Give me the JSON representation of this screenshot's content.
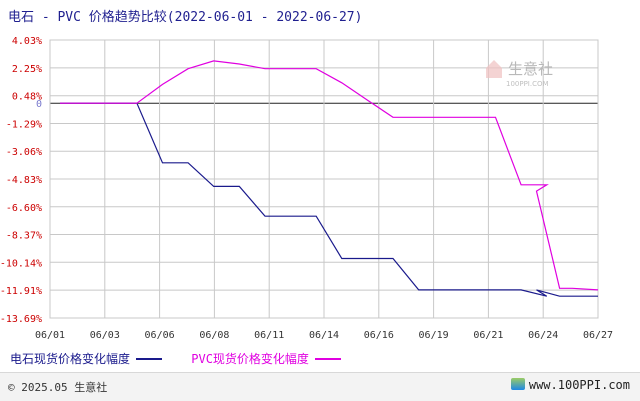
{
  "title": "电石 - PVC 价格趋势比较(2022-06-01 - 2022-06-27)",
  "colors": {
    "series1": "#1a1a8c",
    "series2": "#e000e0",
    "grid": "#c8c8c8",
    "axis": "#222222",
    "tick_text": "#cc0000",
    "x_text": "#333333"
  },
  "watermark": {
    "name": "生意社",
    "site": "100PPI.COM"
  },
  "footer": {
    "copyright": "© 2025.05 生意社",
    "url": "www.100PPI.com"
  },
  "chart_data": {
    "type": "line",
    "title": "电石 - PVC 价格趋势比较(2022-06-01 - 2022-06-27)",
    "y_tick_labels": [
      "4.03%",
      "2.25%",
      "0.48%",
      "0",
      "-1.29%",
      "-3.06%",
      "-4.83%",
      "-6.60%",
      "-8.37%",
      "-10.14%",
      "-11.91%",
      "-13.69%"
    ],
    "y_tick_values": [
      4.03,
      2.25,
      0.48,
      0,
      -1.29,
      -3.06,
      -4.83,
      -6.6,
      -8.37,
      -10.14,
      -11.91,
      -13.69
    ],
    "ylim": [
      -13.69,
      4.03
    ],
    "x_tick_labels": [
      "06/01",
      "06/03",
      "06/06",
      "06/08",
      "06/11",
      "06/14",
      "06/16",
      "06/19",
      "06/21",
      "06/24",
      "06/27"
    ],
    "grid": true,
    "legend_position": "bottom-left",
    "series": [
      {
        "name": "电石现货价格变化幅度",
        "x": [
          0,
          1,
          2,
          3,
          4,
          5,
          6,
          7,
          8,
          9,
          10,
          11,
          12,
          13,
          14,
          15,
          16,
          17,
          18,
          19
        ],
        "values": [
          0,
          0,
          0,
          0,
          -3.8,
          -3.8,
          -5.3,
          -5.3,
          -7.2,
          -7.2,
          -7.2,
          -9.9,
          -9.9,
          -9.9,
          -11.9,
          -11.9,
          -11.9,
          -11.9,
          -11.9,
          -12.3
        ]
      },
      {
        "name": "PVC现货价格变化幅度",
        "x": [
          0,
          1,
          2,
          3,
          4,
          5,
          6,
          7,
          8,
          9,
          10,
          11,
          12,
          13,
          14,
          15,
          16,
          17,
          18,
          19
        ],
        "values": [
          0,
          0,
          0,
          0,
          1.2,
          2.2,
          2.7,
          2.5,
          2.2,
          2.2,
          2.2,
          1.3,
          0.2,
          -0.9,
          -0.9,
          -0.9,
          -0.9,
          -0.9,
          -5.2,
          -5.2
        ]
      }
    ],
    "series_extra": [
      {
        "x": [
          18.6,
          19.5,
          20,
          21
        ],
        "s2": [
          -5.6,
          -11.8,
          -11.8,
          -11.9
        ],
        "s1": [
          -11.9,
          -12.3,
          -12.3,
          -12.3
        ]
      }
    ]
  }
}
